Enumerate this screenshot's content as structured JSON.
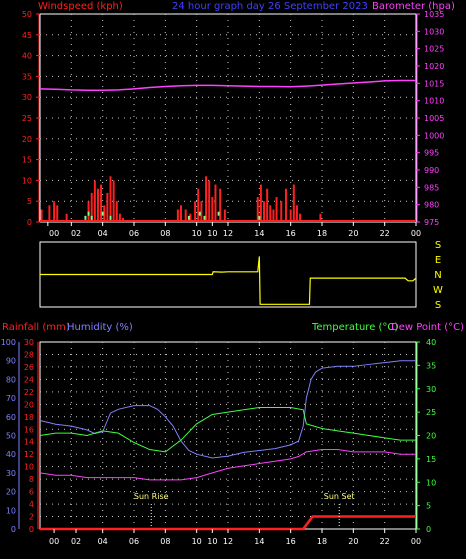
{
  "header": {
    "left_label": "Windspeed (kph)",
    "center_label": "24 hour graph day 26 September 2023",
    "right_label": "Barometer (hpa)"
  },
  "colors": {
    "wind": "#ff2020",
    "gust_marks": "#80ff80",
    "barometer": "#ff40ff",
    "direction": "#ffff00",
    "rainfall": "#ff2020",
    "humidity": "#8080ff",
    "temperature": "#40ff40",
    "dewpoint": "#ff40ff",
    "grid": "#c8c8c8",
    "axis": "#ffffff"
  },
  "x_tick_labels": [
    "00",
    "02",
    "04",
    "06",
    "08",
    "10",
    "10",
    "12",
    "14",
    "16",
    "18",
    "20",
    "22",
    "00"
  ],
  "chart_data": [
    {
      "type": "line",
      "title": "24 hour graph day 26 September 2023",
      "ylabel_left": "Windspeed (kph)",
      "ylabel_right": "Barometer (hpa)",
      "ylim_left": [
        0,
        50
      ],
      "ylim_right": [
        975,
        1035
      ],
      "yticks_left": [
        "0",
        "5",
        "10",
        "15",
        "20",
        "25",
        "30",
        "35",
        "40",
        "45",
        "50"
      ],
      "yticks_right": [
        "975",
        "980",
        "985",
        "990",
        "995",
        "1000",
        "1005",
        "1010",
        "1015",
        "1020",
        "1025",
        "1030",
        "1035"
      ],
      "grid": true,
      "series": [
        {
          "name": "Windspeed (kph)",
          "axis": "left",
          "kind": "bars",
          "points": [
            [
              0.1,
              3
            ],
            [
              0.3,
              0
            ],
            [
              0.6,
              4
            ],
            [
              0.9,
              5
            ],
            [
              1.1,
              4
            ],
            [
              1.3,
              0
            ],
            [
              1.7,
              2
            ],
            [
              2.0,
              0
            ],
            [
              3.1,
              5
            ],
            [
              3.3,
              7
            ],
            [
              3.5,
              10
            ],
            [
              3.7,
              8
            ],
            [
              3.9,
              9
            ],
            [
              4.1,
              4
            ],
            [
              4.3,
              7
            ],
            [
              4.5,
              11
            ],
            [
              4.7,
              10
            ],
            [
              4.9,
              5
            ],
            [
              5.1,
              2
            ],
            [
              5.3,
              1
            ],
            [
              5.6,
              0
            ],
            [
              8.5,
              0
            ],
            [
              8.8,
              3
            ],
            [
              9.0,
              4
            ],
            [
              9.3,
              3
            ],
            [
              9.6,
              2
            ],
            [
              9.9,
              5
            ],
            [
              10.1,
              8
            ],
            [
              10.3,
              5
            ],
            [
              10.6,
              11
            ],
            [
              10.8,
              10
            ],
            [
              11.0,
              6
            ],
            [
              11.2,
              9
            ],
            [
              11.5,
              8
            ],
            [
              11.8,
              3
            ],
            [
              12.0,
              0
            ],
            [
              13.6,
              0
            ],
            [
              13.9,
              6
            ],
            [
              14.1,
              9
            ],
            [
              14.3,
              5
            ],
            [
              14.5,
              8
            ],
            [
              14.7,
              4
            ],
            [
              14.9,
              3
            ],
            [
              15.1,
              6
            ],
            [
              15.4,
              5
            ],
            [
              15.7,
              8
            ],
            [
              16.0,
              3
            ],
            [
              16.2,
              9
            ],
            [
              16.4,
              4
            ],
            [
              16.6,
              2
            ],
            [
              16.8,
              0
            ],
            [
              17.9,
              2
            ],
            [
              18.1,
              0
            ]
          ]
        },
        {
          "name": "Gust",
          "axis": "left",
          "kind": "marks",
          "points": [
            [
              2.9,
              1
            ],
            [
              3.1,
              2
            ],
            [
              3.3,
              1
            ],
            [
              4.0,
              2
            ],
            [
              4.5,
              1
            ],
            [
              9.5,
              1
            ],
            [
              10.2,
              2
            ],
            [
              10.5,
              1
            ],
            [
              11.4,
              2
            ],
            [
              14.0,
              1
            ]
          ]
        },
        {
          "name": "Barometer (hpa)",
          "axis": "right",
          "kind": "line",
          "points": [
            [
              0,
              1013.4
            ],
            [
              1,
              1013.3
            ],
            [
              2,
              1013.1
            ],
            [
              3,
              1013.0
            ],
            [
              4,
              1013.0
            ],
            [
              5,
              1013.1
            ],
            [
              6,
              1013.4
            ],
            [
              7,
              1013.8
            ],
            [
              8,
              1014.1
            ],
            [
              9,
              1014.3
            ],
            [
              10,
              1014.4
            ],
            [
              11,
              1014.4
            ],
            [
              12,
              1014.3
            ],
            [
              13,
              1014.2
            ],
            [
              14,
              1014.1
            ],
            [
              15,
              1014.1
            ],
            [
              16,
              1014.0
            ],
            [
              17,
              1014.2
            ],
            [
              18,
              1014.5
            ],
            [
              19,
              1014.8
            ],
            [
              20,
              1015.1
            ],
            [
              21,
              1015.4
            ],
            [
              22,
              1015.7
            ],
            [
              23,
              1015.8
            ],
            [
              24,
              1015.8
            ]
          ]
        }
      ]
    },
    {
      "type": "line",
      "ylabel_right": "S E N W S",
      "y_labels": [
        "S",
        "E",
        "N",
        "W",
        "S"
      ],
      "ylim": [
        0,
        360
      ],
      "series": [
        {
          "name": "Wind direction",
          "kind": "step",
          "points": [
            [
              0,
              180
            ],
            [
              11,
              180
            ],
            [
              11.05,
              165
            ],
            [
              11.6,
              167
            ],
            [
              12,
              165
            ],
            [
              13.9,
              165
            ],
            [
              14.0,
              80
            ],
            [
              14.05,
              345
            ],
            [
              17.2,
              345
            ],
            [
              17.25,
              200
            ],
            [
              23.3,
              200
            ],
            [
              23.5,
              215
            ],
            [
              23.8,
              215
            ],
            [
              24,
              200
            ]
          ]
        }
      ]
    },
    {
      "type": "line",
      "ylabel_rain": "Rainfall (mm)",
      "ylabel_humidity": "Humidity (%)",
      "ylabel_temperature": "Temperature (°C)",
      "ylabel_dewpoint": "Dew Point (°C)",
      "ylim_rain": [
        0,
        30
      ],
      "ylim_humidity": [
        0,
        100
      ],
      "ylim_temperature": [
        0,
        40
      ],
      "yticks_rain": [
        "0",
        "2",
        "4",
        "6",
        "8",
        "10",
        "12",
        "14",
        "16",
        "18",
        "20",
        "22",
        "24",
        "26",
        "28",
        "30"
      ],
      "yticks_humidity": [
        "0",
        "10",
        "20",
        "30",
        "40",
        "50",
        "60",
        "70",
        "80",
        "90",
        "100"
      ],
      "yticks_temperature": [
        "0",
        "5",
        "10",
        "15",
        "20",
        "25",
        "30",
        "35",
        "40"
      ],
      "annotations": [
        {
          "text": "Sun Rise",
          "x": 7.1
        },
        {
          "text": "Sun Set",
          "x": 19.1
        }
      ],
      "grid": true,
      "series": [
        {
          "name": "Rainfall (mm)",
          "axis": "rain",
          "points": [
            [
              0,
              0
            ],
            [
              16.8,
              0
            ],
            [
              17.4,
              2
            ],
            [
              24,
              2
            ]
          ]
        },
        {
          "name": "Humidity (%)",
          "axis": "humidity",
          "points": [
            [
              0,
              58
            ],
            [
              0.5,
              57
            ],
            [
              1,
              56
            ],
            [
              2,
              55
            ],
            [
              3,
              53
            ],
            [
              3.5,
              51
            ],
            [
              4,
              52
            ],
            [
              4.5,
              62
            ],
            [
              5,
              64
            ],
            [
              6,
              66
            ],
            [
              7,
              66
            ],
            [
              7.5,
              64
            ],
            [
              8,
              60
            ],
            [
              8.5,
              55
            ],
            [
              9,
              47
            ],
            [
              9.5,
              42
            ],
            [
              10,
              40
            ],
            [
              11,
              38
            ],
            [
              12,
              39
            ],
            [
              13,
              41
            ],
            [
              14,
              42
            ],
            [
              15,
              43
            ],
            [
              16,
              45
            ],
            [
              16.5,
              47
            ],
            [
              16.8,
              55
            ],
            [
              17,
              70
            ],
            [
              17.3,
              80
            ],
            [
              17.6,
              84
            ],
            [
              18,
              86
            ],
            [
              19,
              87
            ],
            [
              20,
              87
            ],
            [
              21,
              88
            ],
            [
              22,
              89
            ],
            [
              23,
              90
            ],
            [
              24,
              90
            ]
          ]
        },
        {
          "name": "Temperature (°C)",
          "axis": "temperature",
          "points": [
            [
              0,
              20.0
            ],
            [
              1,
              20.5
            ],
            [
              2,
              20.5
            ],
            [
              3,
              20.0
            ],
            [
              4,
              21.0
            ],
            [
              5,
              20.5
            ],
            [
              6,
              18.5
            ],
            [
              7,
              17.0
            ],
            [
              8,
              16.5
            ],
            [
              9,
              19.0
            ],
            [
              10,
              22.5
            ],
            [
              11,
              24.5
            ],
            [
              12,
              25.0
            ],
            [
              13,
              25.5
            ],
            [
              14,
              26.0
            ],
            [
              15,
              26.0
            ],
            [
              16,
              26.0
            ],
            [
              16.8,
              25.5
            ],
            [
              17,
              22.5
            ],
            [
              18,
              21.5
            ],
            [
              19,
              21.0
            ],
            [
              20,
              20.5
            ],
            [
              21,
              20.0
            ],
            [
              22,
              19.5
            ],
            [
              23,
              19.0
            ],
            [
              24,
              19.0
            ]
          ]
        },
        {
          "name": "Dew Point (°C)",
          "axis": "temperature",
          "points": [
            [
              0,
              12.0
            ],
            [
              1,
              11.5
            ],
            [
              2,
              11.5
            ],
            [
              3,
              11.0
            ],
            [
              4,
              11.0
            ],
            [
              5,
              11.0
            ],
            [
              6,
              11.0
            ],
            [
              7,
              10.5
            ],
            [
              8,
              10.5
            ],
            [
              9,
              10.5
            ],
            [
              10,
              11.0
            ],
            [
              11,
              12.0
            ],
            [
              12,
              13.0
            ],
            [
              13,
              13.5
            ],
            [
              14,
              14.0
            ],
            [
              15,
              14.5
            ],
            [
              16,
              15.0
            ],
            [
              16.5,
              15.5
            ],
            [
              17,
              16.5
            ],
            [
              18,
              17.0
            ],
            [
              19,
              17.0
            ],
            [
              20,
              16.5
            ],
            [
              21,
              16.5
            ],
            [
              22,
              16.5
            ],
            [
              23,
              16.0
            ],
            [
              24,
              16.0
            ]
          ]
        }
      ]
    }
  ],
  "bottom": {
    "rain_label": "Rainfall (mm)",
    "humidity_label": "Humidity (%)",
    "temperature_label": "Temperature (°C)",
    "dewpoint_label": "Dew Point (°C)",
    "sunrise_label": "Sun Rise",
    "sunset_label": "Sun Set"
  },
  "direction_labels": [
    "S",
    "E",
    "N",
    "W",
    "S"
  ]
}
